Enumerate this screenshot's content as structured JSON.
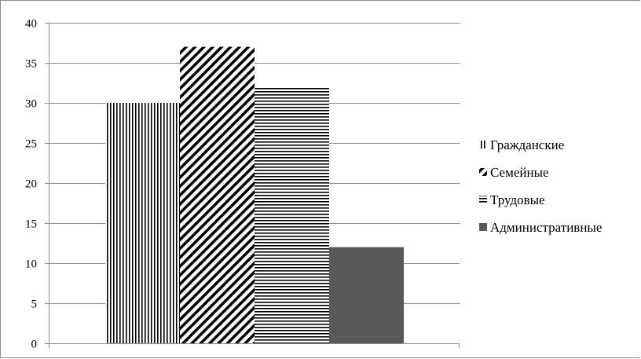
{
  "chart_data": {
    "type": "bar",
    "title": "",
    "xlabel": "",
    "ylabel": "",
    "ylim": [
      0,
      40
    ],
    "yticks": [
      0,
      5,
      10,
      15,
      20,
      25,
      30,
      35,
      40
    ],
    "grid": true,
    "legend_position": "right",
    "series": [
      {
        "name": "Гражданские",
        "values": [
          30
        ],
        "pattern": "vertical-lines",
        "color": "#000000"
      },
      {
        "name": "Семейные",
        "values": [
          37
        ],
        "pattern": "diagonal-lines",
        "color": "#000000"
      },
      {
        "name": "Трудовые",
        "values": [
          32
        ],
        "pattern": "horizontal-lines",
        "color": "#000000"
      },
      {
        "name": "Административные",
        "values": [
          12
        ],
        "pattern": "solid",
        "color": "#595959"
      }
    ]
  }
}
